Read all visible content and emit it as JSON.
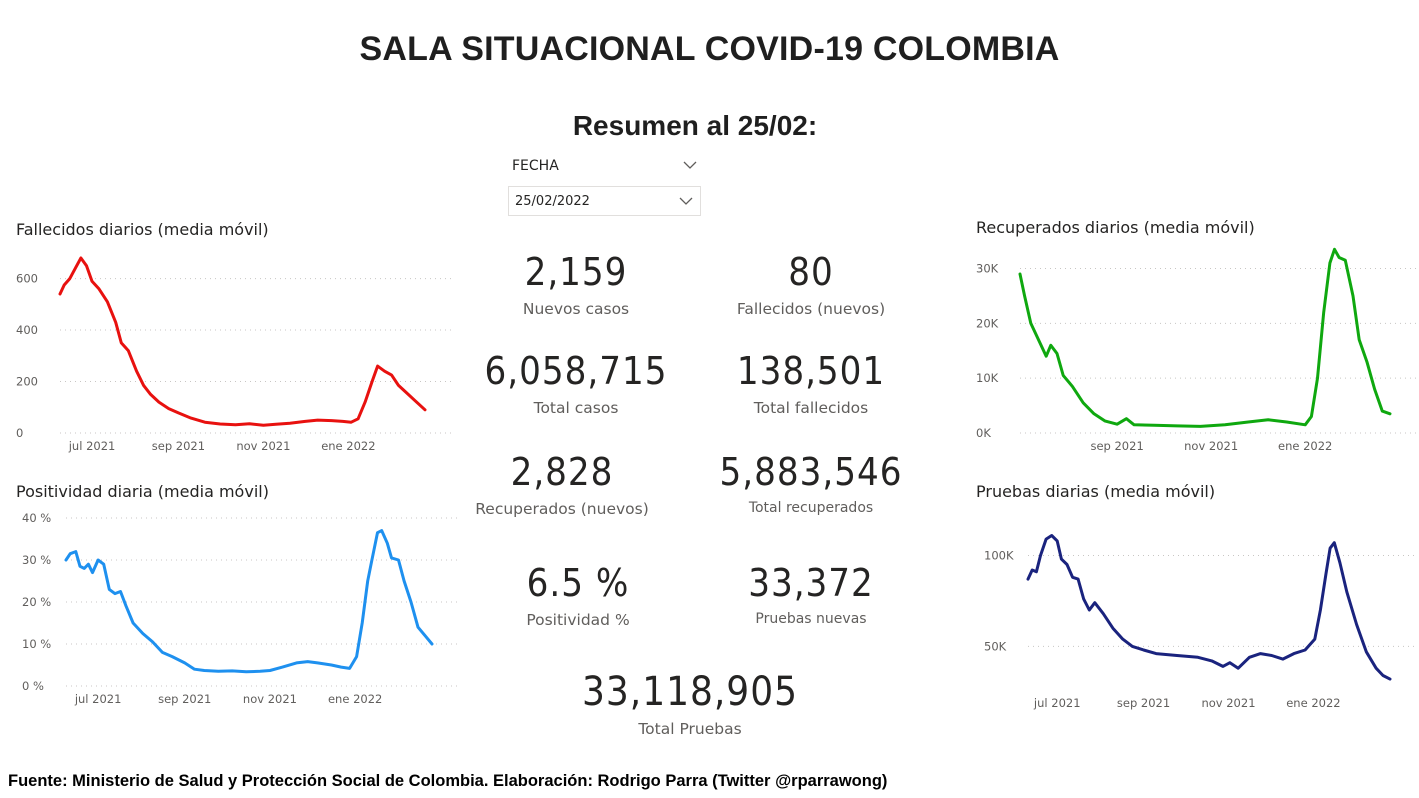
{
  "header": {
    "title": "SALA SITUACIONAL COVID-19 COLOMBIA",
    "subtitle": "Resumen al 25/02:"
  },
  "slicer": {
    "label": "FECHA",
    "value": "25/02/2022",
    "icon": "chevron-down-icon"
  },
  "kpis": {
    "nuevos_casos": {
      "value": "2,159",
      "label": "Nuevos casos"
    },
    "fallecidos_nuevos": {
      "value": "80",
      "label": "Fallecidos (nuevos)"
    },
    "total_casos": {
      "value": "6,058,715",
      "label": "Total casos"
    },
    "total_fallecidos": {
      "value": "138,501",
      "label": "Total fallecidos"
    },
    "recuperados_nuevos": {
      "value": "2,828",
      "label": "Recuperados (nuevos)"
    },
    "total_recuperados": {
      "value": "5,883,546",
      "label": "Total recuperados"
    },
    "positividad": {
      "value": "6.5 %",
      "label": "Positividad %"
    },
    "pruebas_nuevas": {
      "value": "33,372",
      "label": "Pruebas nuevas"
    },
    "total_pruebas": {
      "value": "33,118,905",
      "label": "Total Pruebas"
    }
  },
  "footer": {
    "text": "Fuente: Ministerio de Salud y Protección Social de Colombia. Elaboración: Rodrigo Parra (Twitter @rparrawong)"
  },
  "chart_data": [
    {
      "id": "fallecidos",
      "type": "line",
      "title": "Fallecidos diarios (media móvil)",
      "color": "#e8110f",
      "x_start": "2021-06-08",
      "x_ticks": [
        {
          "date": "2021-07-01",
          "label": "jul 2021"
        },
        {
          "date": "2021-09-01",
          "label": "sep 2021"
        },
        {
          "date": "2021-11-01",
          "label": "nov 2021"
        },
        {
          "date": "2022-01-01",
          "label": "ene 2022"
        }
      ],
      "x_range": [
        "2021-06-08",
        "2022-02-25"
      ],
      "y_ticks": [
        {
          "v": 0,
          "label": "0"
        },
        {
          "v": 200,
          "label": "200"
        },
        {
          "v": 400,
          "label": "400"
        },
        {
          "v": 600,
          "label": "600"
        }
      ],
      "ylim": [
        0,
        680
      ],
      "points": [
        [
          "2021-06-08",
          540
        ],
        [
          "2021-06-11",
          575
        ],
        [
          "2021-06-15",
          600
        ],
        [
          "2021-06-19",
          640
        ],
        [
          "2021-06-23",
          680
        ],
        [
          "2021-06-27",
          650
        ],
        [
          "2021-07-01",
          590
        ],
        [
          "2021-07-06",
          560
        ],
        [
          "2021-07-12",
          510
        ],
        [
          "2021-07-18",
          430
        ],
        [
          "2021-07-22",
          350
        ],
        [
          "2021-07-27",
          320
        ],
        [
          "2021-08-02",
          240
        ],
        [
          "2021-08-07",
          185
        ],
        [
          "2021-08-12",
          150
        ],
        [
          "2021-08-18",
          120
        ],
        [
          "2021-08-25",
          95
        ],
        [
          "2021-09-01",
          78
        ],
        [
          "2021-09-10",
          58
        ],
        [
          "2021-09-20",
          42
        ],
        [
          "2021-10-01",
          35
        ],
        [
          "2021-10-12",
          32
        ],
        [
          "2021-10-22",
          36
        ],
        [
          "2021-11-01",
          30
        ],
        [
          "2021-11-10",
          34
        ],
        [
          "2021-11-20",
          38
        ],
        [
          "2021-12-01",
          45
        ],
        [
          "2021-12-10",
          50
        ],
        [
          "2021-12-20",
          48
        ],
        [
          "2021-12-28",
          45
        ],
        [
          "2022-01-03",
          42
        ],
        [
          "2022-01-08",
          55
        ],
        [
          "2022-01-13",
          120
        ],
        [
          "2022-01-18",
          200
        ],
        [
          "2022-01-22",
          260
        ],
        [
          "2022-01-27",
          240
        ],
        [
          "2022-02-01",
          225
        ],
        [
          "2022-02-06",
          185
        ],
        [
          "2022-02-12",
          155
        ],
        [
          "2022-02-18",
          125
        ],
        [
          "2022-02-25",
          90
        ]
      ]
    },
    {
      "id": "positividad",
      "type": "line",
      "title": "Positividad diaria (media móvil)",
      "color": "#1e90ef",
      "x_range": [
        "2021-06-08",
        "2022-02-25"
      ],
      "x_ticks": [
        {
          "date": "2021-07-01",
          "label": "jul 2021"
        },
        {
          "date": "2021-09-01",
          "label": "sep 2021"
        },
        {
          "date": "2021-11-01",
          "label": "nov 2021"
        },
        {
          "date": "2022-01-01",
          "label": "ene 2022"
        }
      ],
      "y_ticks": [
        {
          "v": 0,
          "label": "0 %"
        },
        {
          "v": 10,
          "label": "10 %"
        },
        {
          "v": 20,
          "label": "20 %"
        },
        {
          "v": 30,
          "label": "30 %"
        },
        {
          "v": 40,
          "label": "40 %"
        }
      ],
      "ylim": [
        0,
        40
      ],
      "points": [
        [
          "2021-06-08",
          30
        ],
        [
          "2021-06-11",
          31.5
        ],
        [
          "2021-06-15",
          32
        ],
        [
          "2021-06-18",
          28.5
        ],
        [
          "2021-06-21",
          28
        ],
        [
          "2021-06-24",
          29
        ],
        [
          "2021-06-27",
          27
        ],
        [
          "2021-07-01",
          30
        ],
        [
          "2021-07-05",
          29
        ],
        [
          "2021-07-09",
          23
        ],
        [
          "2021-07-13",
          22
        ],
        [
          "2021-07-17",
          22.5
        ],
        [
          "2021-07-21",
          19
        ],
        [
          "2021-07-26",
          15
        ],
        [
          "2021-08-02",
          12.5
        ],
        [
          "2021-08-09",
          10.5
        ],
        [
          "2021-08-16",
          8
        ],
        [
          "2021-08-23",
          7
        ],
        [
          "2021-09-01",
          5.5
        ],
        [
          "2021-09-08",
          4
        ],
        [
          "2021-09-15",
          3.7
        ],
        [
          "2021-09-25",
          3.5
        ],
        [
          "2021-10-05",
          3.6
        ],
        [
          "2021-10-15",
          3.4
        ],
        [
          "2021-10-25",
          3.5
        ],
        [
          "2021-11-01",
          3.7
        ],
        [
          "2021-11-10",
          4.5
        ],
        [
          "2021-11-20",
          5.5
        ],
        [
          "2021-11-28",
          5.8
        ],
        [
          "2021-12-05",
          5.5
        ],
        [
          "2021-12-15",
          5
        ],
        [
          "2021-12-22",
          4.5
        ],
        [
          "2021-12-28",
          4.2
        ],
        [
          "2022-01-02",
          7
        ],
        [
          "2022-01-06",
          15
        ],
        [
          "2022-01-10",
          25
        ],
        [
          "2022-01-13",
          30
        ],
        [
          "2022-01-17",
          36.5
        ],
        [
          "2022-01-20",
          37
        ],
        [
          "2022-01-24",
          34
        ],
        [
          "2022-01-27",
          30.5
        ],
        [
          "2022-02-01",
          30
        ],
        [
          "2022-02-05",
          25
        ],
        [
          "2022-02-10",
          20
        ],
        [
          "2022-02-15",
          14
        ],
        [
          "2022-02-20",
          12
        ],
        [
          "2022-02-25",
          10
        ]
      ]
    },
    {
      "id": "recuperados",
      "type": "line",
      "title": "Recuperados diarios (media móvil)",
      "color": "#0fa80f",
      "x_range": [
        "2021-06-30",
        "2022-02-25"
      ],
      "x_ticks": [
        {
          "date": "2021-09-01",
          "label": "sep 2021"
        },
        {
          "date": "2021-11-01",
          "label": "nov 2021"
        },
        {
          "date": "2022-01-01",
          "label": "ene 2022"
        }
      ],
      "y_ticks": [
        {
          "v": 0,
          "label": "0K"
        },
        {
          "v": 10000,
          "label": "10K"
        },
        {
          "v": 20000,
          "label": "20K"
        },
        {
          "v": 30000,
          "label": "30K"
        }
      ],
      "ylim": [
        0,
        31000
      ],
      "points": [
        [
          "2021-06-30",
          29000
        ],
        [
          "2021-07-03",
          25000
        ],
        [
          "2021-07-07",
          20000
        ],
        [
          "2021-07-12",
          17000
        ],
        [
          "2021-07-17",
          14000
        ],
        [
          "2021-07-20",
          16000
        ],
        [
          "2021-07-24",
          14500
        ],
        [
          "2021-07-28",
          10500
        ],
        [
          "2021-08-03",
          8500
        ],
        [
          "2021-08-10",
          5500
        ],
        [
          "2021-08-17",
          3500
        ],
        [
          "2021-08-24",
          2200
        ],
        [
          "2021-09-01",
          1600
        ],
        [
          "2021-09-07",
          2600
        ],
        [
          "2021-09-12",
          1500
        ],
        [
          "2021-09-25",
          1400
        ],
        [
          "2021-10-10",
          1300
        ],
        [
          "2021-10-25",
          1200
        ],
        [
          "2021-11-10",
          1500
        ],
        [
          "2021-11-25",
          2000
        ],
        [
          "2021-12-08",
          2400
        ],
        [
          "2021-12-20",
          2000
        ],
        [
          "2022-01-01",
          1500
        ],
        [
          "2022-01-05",
          3000
        ],
        [
          "2022-01-09",
          10000
        ],
        [
          "2022-01-13",
          22000
        ],
        [
          "2022-01-17",
          31000
        ],
        [
          "2022-01-20",
          33500
        ],
        [
          "2022-01-23",
          32000
        ],
        [
          "2022-01-27",
          31500
        ],
        [
          "2022-02-01",
          25000
        ],
        [
          "2022-02-05",
          17000
        ],
        [
          "2022-02-10",
          13000
        ],
        [
          "2022-02-15",
          8000
        ],
        [
          "2022-02-20",
          4000
        ],
        [
          "2022-02-25",
          3500
        ]
      ]
    },
    {
      "id": "pruebas",
      "type": "line",
      "title": "Pruebas diarias (media móvil)",
      "color": "#1a237e",
      "x_range": [
        "2021-06-10",
        "2022-02-25"
      ],
      "x_ticks": [
        {
          "date": "2021-07-01",
          "label": "jul 2021"
        },
        {
          "date": "2021-09-01",
          "label": "sep 2021"
        },
        {
          "date": "2021-11-01",
          "label": "nov 2021"
        },
        {
          "date": "2022-01-01",
          "label": "ene 2022"
        }
      ],
      "y_ticks": [
        {
          "v": 50000,
          "label": "50K"
        },
        {
          "v": 100000,
          "label": "100K"
        }
      ],
      "ylim": [
        26000,
        114000
      ],
      "points": [
        [
          "2021-06-10",
          87000
        ],
        [
          "2021-06-13",
          92000
        ],
        [
          "2021-06-16",
          91000
        ],
        [
          "2021-06-19",
          100000
        ],
        [
          "2021-06-23",
          109000
        ],
        [
          "2021-06-27",
          111000
        ],
        [
          "2021-07-01",
          108000
        ],
        [
          "2021-07-04",
          98000
        ],
        [
          "2021-07-08",
          95000
        ],
        [
          "2021-07-12",
          88000
        ],
        [
          "2021-07-16",
          87000
        ],
        [
          "2021-07-20",
          76000
        ],
        [
          "2021-07-24",
          70000
        ],
        [
          "2021-07-28",
          74000
        ],
        [
          "2021-08-03",
          68000
        ],
        [
          "2021-08-10",
          60000
        ],
        [
          "2021-08-17",
          54000
        ],
        [
          "2021-08-24",
          50000
        ],
        [
          "2021-09-01",
          48000
        ],
        [
          "2021-09-10",
          46000
        ],
        [
          "2021-09-25",
          45000
        ],
        [
          "2021-10-10",
          44000
        ],
        [
          "2021-10-20",
          42000
        ],
        [
          "2021-10-28",
          39000
        ],
        [
          "2021-11-02",
          41000
        ],
        [
          "2021-11-08",
          38000
        ],
        [
          "2021-11-16",
          44000
        ],
        [
          "2021-11-24",
          46000
        ],
        [
          "2021-12-02",
          45000
        ],
        [
          "2021-12-10",
          43000
        ],
        [
          "2021-12-18",
          46000
        ],
        [
          "2021-12-26",
          48000
        ],
        [
          "2022-01-02",
          54000
        ],
        [
          "2022-01-06",
          70000
        ],
        [
          "2022-01-10",
          90000
        ],
        [
          "2022-01-13",
          104000
        ],
        [
          "2022-01-16",
          107000
        ],
        [
          "2022-01-20",
          96000
        ],
        [
          "2022-01-25",
          80000
        ],
        [
          "2022-02-01",
          62000
        ],
        [
          "2022-02-08",
          47000
        ],
        [
          "2022-02-15",
          38000
        ],
        [
          "2022-02-20",
          34000
        ],
        [
          "2022-02-25",
          32000
        ]
      ]
    }
  ]
}
